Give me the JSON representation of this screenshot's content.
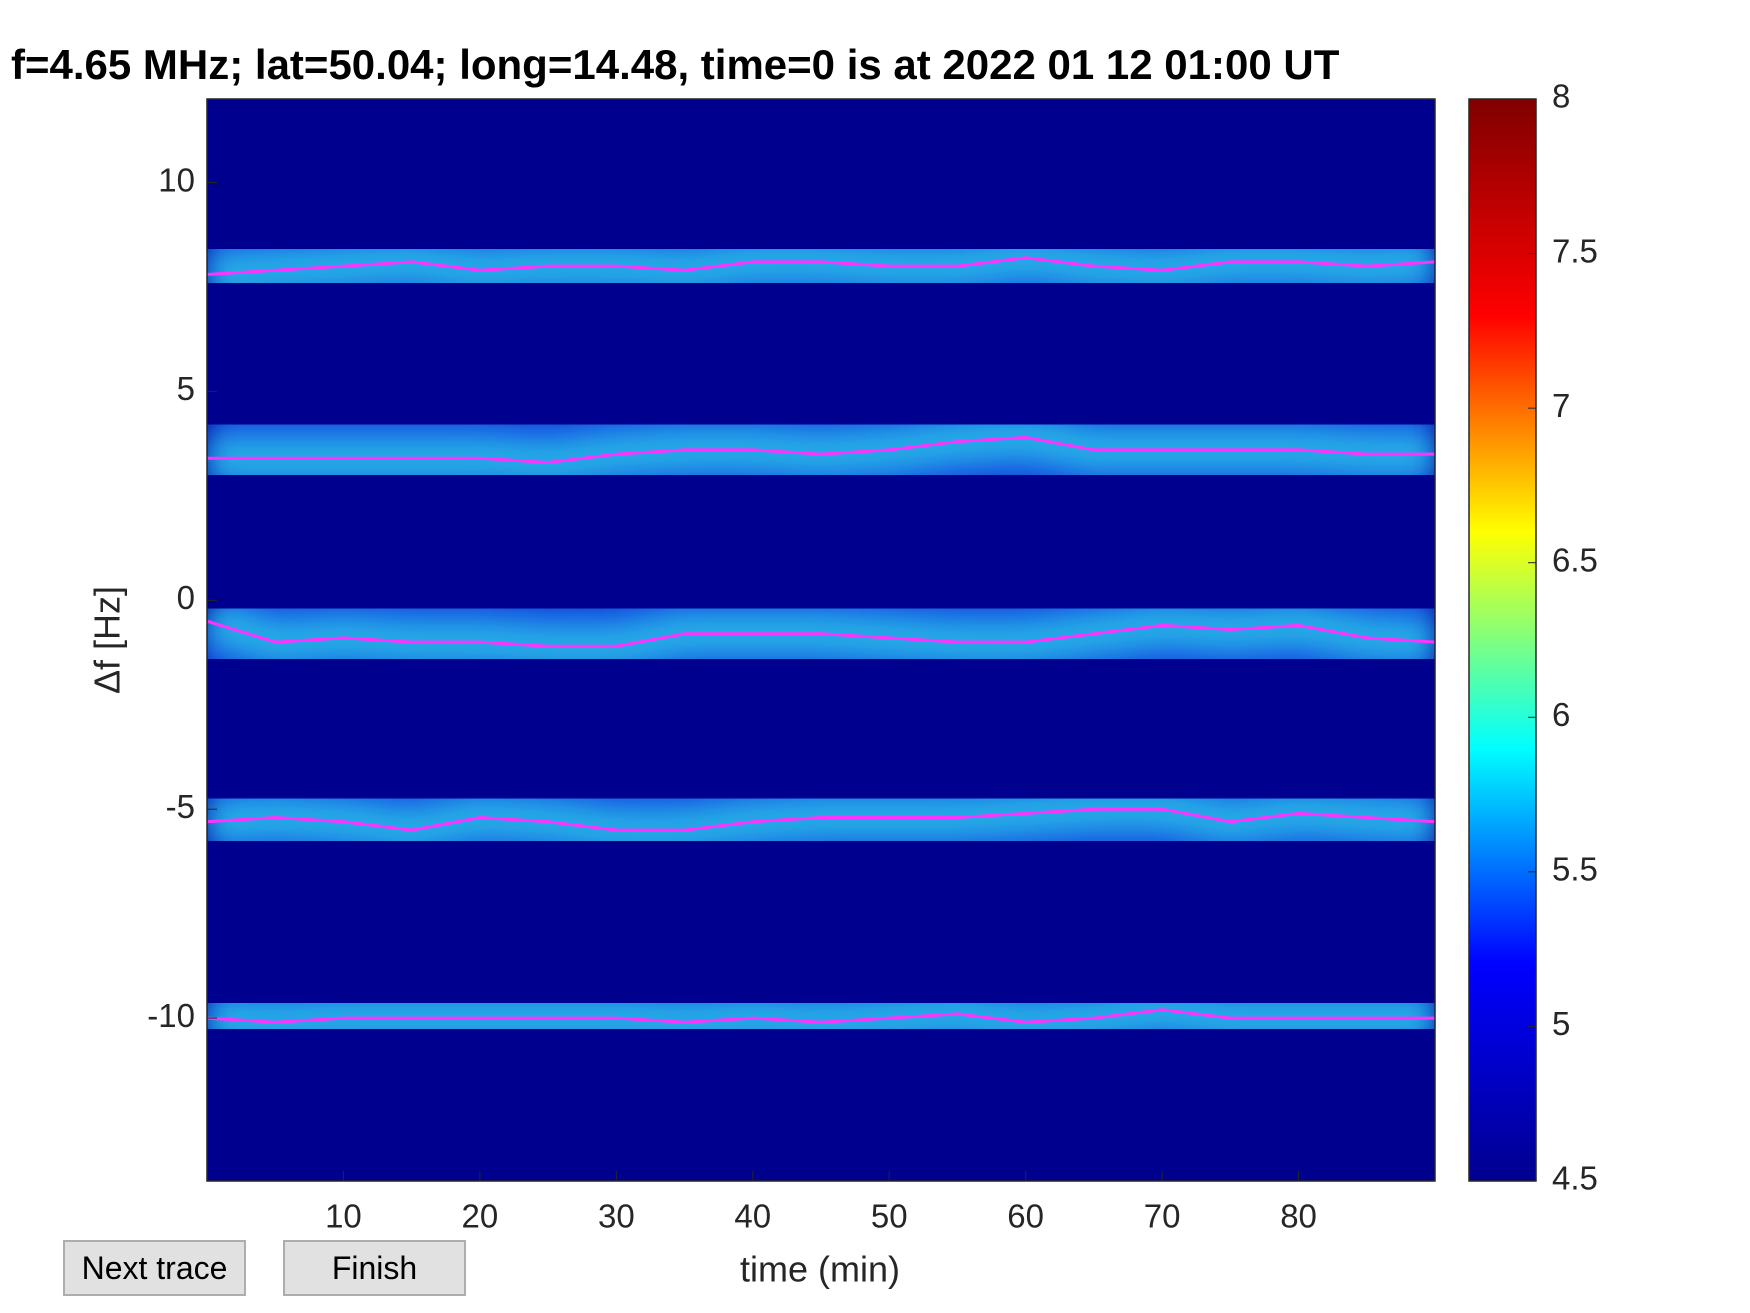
{
  "chart_data": {
    "type": "spectrogram",
    "title": "f=4.65 MHz;  lat=50.04; long=14.48, time=0 is at 2022 01 12 01:00 UT",
    "xlabel": "time (min)",
    "ylabel": "Δf [Hz]",
    "xlim": [
      0,
      90
    ],
    "ylim": [
      -13.9,
      12
    ],
    "xticks": [
      10,
      20,
      30,
      40,
      50,
      60,
      70,
      80
    ],
    "yticks": [
      -10,
      -5,
      0,
      5,
      10
    ],
    "background": "#00008f",
    "colormap": "jet",
    "clim": [
      4.5,
      8
    ],
    "cticks": [
      4.5,
      5,
      5.5,
      6,
      6.5,
      7,
      7.5,
      8
    ],
    "x": [
      0,
      5,
      10,
      15,
      20,
      25,
      30,
      35,
      40,
      45,
      50,
      55,
      60,
      65,
      70,
      75,
      80,
      85,
      90
    ],
    "series": [
      {
        "color": "#ff33ff",
        "values": [
          7.8,
          7.9,
          8.0,
          8.1,
          7.9,
          8.0,
          8.0,
          7.9,
          8.1,
          8.1,
          8.0,
          8.0,
          8.2,
          8.0,
          7.9,
          8.1,
          8.1,
          8.0,
          8.1
        ]
      },
      {
        "color": "#ff33ff",
        "values": [
          3.4,
          3.4,
          3.4,
          3.4,
          3.4,
          3.3,
          3.5,
          3.6,
          3.6,
          3.5,
          3.6,
          3.8,
          3.9,
          3.6,
          3.6,
          3.6,
          3.6,
          3.5,
          3.5
        ]
      },
      {
        "color": "#ff33ff",
        "values": [
          -0.5,
          -1.0,
          -0.9,
          -1.0,
          -1.0,
          -1.1,
          -1.1,
          -0.8,
          -0.8,
          -0.8,
          -0.9,
          -1.0,
          -1.0,
          -0.8,
          -0.6,
          -0.7,
          -0.6,
          -0.9,
          -1.0
        ]
      },
      {
        "color": "#ff33ff",
        "values": [
          -5.3,
          -5.2,
          -5.3,
          -5.5,
          -5.2,
          -5.3,
          -5.5,
          -5.5,
          -5.3,
          -5.2,
          -5.2,
          -5.2,
          -5.1,
          -5.0,
          -5.0,
          -5.3,
          -5.1,
          -5.2,
          -5.3
        ]
      },
      {
        "color": "#ff33ff",
        "values": [
          -10.0,
          -10.1,
          -10.0,
          -10.0,
          -10.0,
          -10.0,
          -10.0,
          -10.1,
          -10.0,
          -10.1,
          -10.0,
          -9.9,
          -10.1,
          -10.0,
          -9.8,
          -10.0,
          -10.0,
          -10.0,
          -10.0
        ]
      }
    ]
  },
  "buttons": [
    "Next trace",
    "Finish"
  ]
}
